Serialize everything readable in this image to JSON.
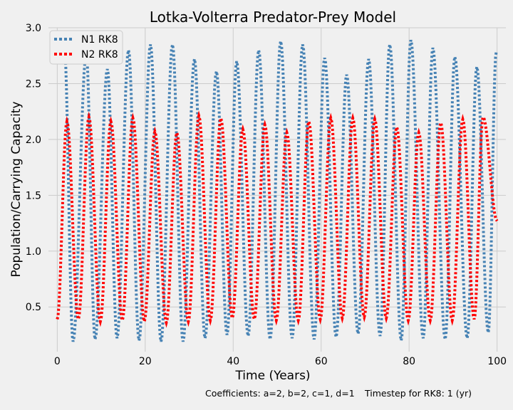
{
  "chart_data": {
    "type": "line",
    "title": "Lotka-Volterra Predator-Prey Model",
    "xlabel": "Time (Years)",
    "ylabel": "Population/Carrying Capacity",
    "xlim": [
      -2,
      102
    ],
    "ylim": [
      0.1,
      3.0
    ],
    "xticks": [
      0,
      20,
      40,
      60,
      80,
      100
    ],
    "xtick_labels": [
      "0",
      "20",
      "40",
      "60",
      "80",
      "100"
    ],
    "yticks": [
      0.5,
      1.0,
      1.5,
      2.0,
      2.5,
      3.0
    ],
    "ytick_labels": [
      "0.5",
      "1.0",
      "1.5",
      "2.0",
      "2.5",
      "3.0"
    ],
    "grid": true,
    "legend": "top-left",
    "line_style": "dotted",
    "series": [
      {
        "name": "N1 RK8",
        "color": "#4682b4",
        "peaks": [
          {
            "x": 1.6,
            "y": 2.84
          },
          {
            "x": 6.6,
            "y": 2.77
          },
          {
            "x": 11.4,
            "y": 2.63
          },
          {
            "x": 16.2,
            "y": 2.8
          },
          {
            "x": 21.2,
            "y": 2.85
          },
          {
            "x": 26.2,
            "y": 2.85
          },
          {
            "x": 31.2,
            "y": 2.72
          },
          {
            "x": 36.2,
            "y": 2.61
          },
          {
            "x": 40.8,
            "y": 2.7
          },
          {
            "x": 45.8,
            "y": 2.8
          },
          {
            "x": 50.8,
            "y": 2.88
          },
          {
            "x": 55.8,
            "y": 2.85
          },
          {
            "x": 60.8,
            "y": 2.73
          },
          {
            "x": 65.8,
            "y": 2.58
          },
          {
            "x": 70.8,
            "y": 2.72
          },
          {
            "x": 75.6,
            "y": 2.85
          },
          {
            "x": 80.4,
            "y": 2.89
          },
          {
            "x": 85.4,
            "y": 2.82
          },
          {
            "x": 90.4,
            "y": 2.74
          },
          {
            "x": 95.4,
            "y": 2.65
          },
          {
            "x": 99.8,
            "y": 2.78
          }
        ],
        "troughs": [
          {
            "x": 3.6,
            "y": 0.19
          },
          {
            "x": 8.6,
            "y": 0.21
          },
          {
            "x": 13.6,
            "y": 0.22
          },
          {
            "x": 18.6,
            "y": 0.2
          },
          {
            "x": 23.6,
            "y": 0.19
          },
          {
            "x": 28.6,
            "y": 0.19
          },
          {
            "x": 33.6,
            "y": 0.22
          },
          {
            "x": 38.6,
            "y": 0.25
          },
          {
            "x": 43.4,
            "y": 0.24
          },
          {
            "x": 48.4,
            "y": 0.21
          },
          {
            "x": 53.4,
            "y": 0.22
          },
          {
            "x": 58.4,
            "y": 0.21
          },
          {
            "x": 63.4,
            "y": 0.23
          },
          {
            "x": 68.4,
            "y": 0.26
          },
          {
            "x": 73.4,
            "y": 0.24
          },
          {
            "x": 78.2,
            "y": 0.2
          },
          {
            "x": 83.2,
            "y": 0.22
          },
          {
            "x": 88.2,
            "y": 0.21
          },
          {
            "x": 93.2,
            "y": 0.22
          },
          {
            "x": 98.0,
            "y": 0.27
          }
        ]
      },
      {
        "name": "N2 RK8",
        "color": "#ff0000",
        "start": {
          "x": 0,
          "y": 0.39
        },
        "peaks": [
          {
            "x": 2.2,
            "y": 2.16
          },
          {
            "x": 7.2,
            "y": 2.2
          },
          {
            "x": 12.2,
            "y": 2.16
          },
          {
            "x": 17.2,
            "y": 2.19
          },
          {
            "x": 22.2,
            "y": 2.07
          },
          {
            "x": 27.2,
            "y": 2.06
          },
          {
            "x": 32.2,
            "y": 2.21
          },
          {
            "x": 37.2,
            "y": 2.19
          },
          {
            "x": 42.2,
            "y": 2.09
          },
          {
            "x": 47.2,
            "y": 2.13
          },
          {
            "x": 52.2,
            "y": 2.06
          },
          {
            "x": 57.2,
            "y": 2.16
          },
          {
            "x": 62.2,
            "y": 2.19
          },
          {
            "x": 67.2,
            "y": 2.19
          },
          {
            "x": 72.2,
            "y": 2.18
          },
          {
            "x": 77.2,
            "y": 2.11
          },
          {
            "x": 82.2,
            "y": 2.06
          },
          {
            "x": 87.2,
            "y": 2.15
          },
          {
            "x": 92.2,
            "y": 2.18
          },
          {
            "x": 96.8,
            "y": 2.2
          }
        ],
        "troughs": [
          {
            "x": 4.8,
            "y": 0.39
          },
          {
            "x": 9.8,
            "y": 0.37
          },
          {
            "x": 14.8,
            "y": 0.38
          },
          {
            "x": 19.8,
            "y": 0.37
          },
          {
            "x": 24.8,
            "y": 0.36
          },
          {
            "x": 29.8,
            "y": 0.37
          },
          {
            "x": 34.8,
            "y": 0.38
          },
          {
            "x": 39.8,
            "y": 0.4
          },
          {
            "x": 44.8,
            "y": 0.39
          },
          {
            "x": 49.8,
            "y": 0.38
          },
          {
            "x": 54.8,
            "y": 0.38
          },
          {
            "x": 59.8,
            "y": 0.39
          },
          {
            "x": 64.8,
            "y": 0.4
          },
          {
            "x": 69.8,
            "y": 0.41
          },
          {
            "x": 74.8,
            "y": 0.4
          },
          {
            "x": 79.8,
            "y": 0.38
          },
          {
            "x": 84.8,
            "y": 0.38
          },
          {
            "x": 89.8,
            "y": 0.38
          },
          {
            "x": 94.8,
            "y": 0.39
          }
        ],
        "end": {
          "x": 100,
          "y": 1.27
        }
      }
    ]
  },
  "captions": {
    "coefficients": "Coefficients: a=2, b=2, c=1, d=1",
    "timestep": "Timestep for RK8: 1 (yr)"
  }
}
